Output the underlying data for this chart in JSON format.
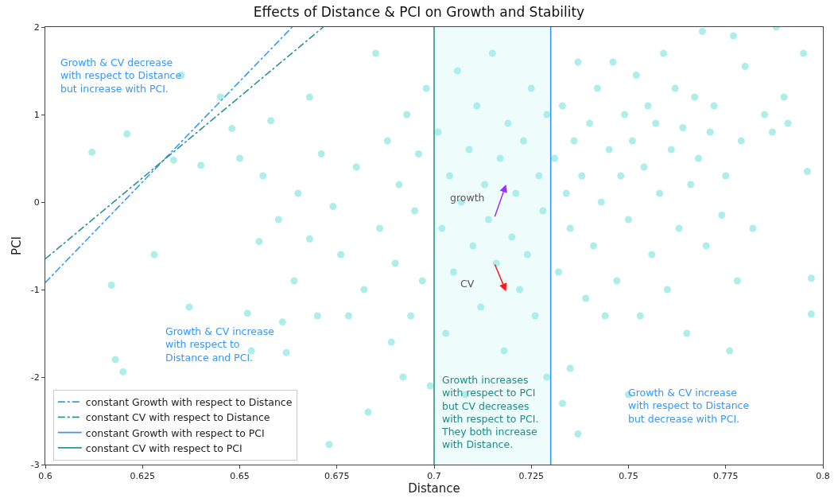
{
  "chart_data": {
    "type": "scatter",
    "title": "Effects of Distance & PCI on Growth and Stability",
    "xlabel": "Distance",
    "ylabel": "PCI",
    "xlim": [
      0.6,
      0.8
    ],
    "xticks": [
      0.6,
      0.625,
      0.65,
      0.675,
      0.7,
      0.725,
      0.75,
      0.775,
      0.8
    ],
    "ylim": [
      -3,
      2
    ],
    "yticks": [
      -3,
      -2,
      -1,
      0,
      1,
      2
    ],
    "grid": false,
    "legend": "bottom left",
    "annotations": [
      "Growth & CV decrease\nwith respect to Distance\nbut increase with PCI.",
      "Growth & CV increase\nwith respect to\nDistance and PCI.",
      "Growth increases\nwith respect to PCI\nbut CV decreases\nwith respect to PCI.\nThey both increase\nwith Distance.",
      "Growth & CV increase\nwith respect to Distance\nbut decrease with PCI.",
      "growth",
      "CV"
    ],
    "bands": [
      {
        "axis": "x",
        "from": 0.7,
        "to": 0.73,
        "color": "#effcfc"
      }
    ],
    "series": [
      {
        "marker": "circle",
        "color": "#aeeeea",
        "x": [
          0.612,
          0.617,
          0.618,
          0.62,
          0.621,
          0.628,
          0.633,
          0.635,
          0.637,
          0.64,
          0.645,
          0.648,
          0.65,
          0.652,
          0.653,
          0.655,
          0.656,
          0.658,
          0.66,
          0.661,
          0.662,
          0.664,
          0.665,
          0.668,
          0.668,
          0.67,
          0.671,
          0.673,
          0.674,
          0.676,
          0.678,
          0.68,
          0.682,
          0.683,
          0.685,
          0.686,
          0.688,
          0.689,
          0.69,
          0.691,
          0.692,
          0.693,
          0.694,
          0.695,
          0.696,
          0.697,
          0.698,
          0.699,
          0.701,
          0.702,
          0.703,
          0.704,
          0.705,
          0.706,
          0.707,
          0.708,
          0.709,
          0.71,
          0.711,
          0.712,
          0.713,
          0.714,
          0.715,
          0.716,
          0.717,
          0.718,
          0.719,
          0.72,
          0.721,
          0.722,
          0.723,
          0.724,
          0.725,
          0.726,
          0.727,
          0.728,
          0.729,
          0.729,
          0.731,
          0.732,
          0.733,
          0.733,
          0.734,
          0.735,
          0.735,
          0.736,
          0.737,
          0.737,
          0.738,
          0.739,
          0.74,
          0.741,
          0.742,
          0.743,
          0.744,
          0.745,
          0.746,
          0.747,
          0.748,
          0.749,
          0.75,
          0.75,
          0.751,
          0.752,
          0.753,
          0.754,
          0.755,
          0.756,
          0.757,
          0.758,
          0.759,
          0.76,
          0.761,
          0.762,
          0.763,
          0.764,
          0.765,
          0.766,
          0.767,
          0.768,
          0.769,
          0.77,
          0.771,
          0.772,
          0.774,
          0.775,
          0.776,
          0.777,
          0.778,
          0.779,
          0.78,
          0.782,
          0.785,
          0.787,
          0.788,
          0.79,
          0.791,
          0.795,
          0.796,
          0.797,
          0.797
        ],
        "values": [
          0.57,
          -0.95,
          -1.8,
          -1.94,
          0.78,
          -0.6,
          0.48,
          1.45,
          -1.2,
          0.42,
          1.2,
          0.84,
          0.5,
          -1.27,
          -1.7,
          -0.45,
          0.3,
          0.93,
          -0.2,
          -1.37,
          -1.72,
          -0.9,
          0.1,
          -0.42,
          1.2,
          -1.3,
          0.55,
          -2.77,
          -0.05,
          -0.6,
          -1.3,
          0.4,
          -1.0,
          -2.4,
          1.7,
          -0.3,
          0.7,
          -1.6,
          -0.7,
          0.2,
          -2.0,
          1.0,
          -1.3,
          -0.1,
          0.55,
          -0.9,
          1.3,
          -2.1,
          0.8,
          -0.3,
          -1.5,
          0.3,
          -0.8,
          1.5,
          0.0,
          -2.2,
          0.6,
          -0.5,
          1.1,
          -1.2,
          0.2,
          -0.2,
          1.7,
          -0.7,
          0.5,
          -1.7,
          0.9,
          -0.4,
          0.1,
          -1.0,
          0.7,
          -0.6,
          1.3,
          -1.3,
          0.3,
          -0.1,
          -2.0,
          1.0,
          0.5,
          -0.8,
          -2.3,
          1.1,
          0.1,
          -1.9,
          -0.3,
          0.7,
          -2.65,
          1.6,
          0.3,
          -1.1,
          0.9,
          -0.5,
          1.3,
          0.0,
          -1.3,
          0.6,
          1.6,
          -0.9,
          0.3,
          1.0,
          -2.2,
          -0.2,
          0.7,
          1.45,
          -1.3,
          0.4,
          1.1,
          -0.6,
          0.9,
          0.1,
          1.7,
          -1.0,
          0.6,
          1.3,
          -0.3,
          0.85,
          -1.5,
          0.2,
          1.2,
          0.5,
          1.95,
          -0.5,
          0.8,
          1.1,
          -0.15,
          0.3,
          -1.7,
          1.9,
          -0.9,
          0.7,
          1.55,
          -0.3,
          1.0,
          0.8,
          2.0,
          1.2,
          0.9,
          1.7,
          0.35,
          -0.87,
          -1.28
        ]
      },
      {
        "type": "line",
        "name": "constant Growth with respect to Distance",
        "color": "#3399ff",
        "marker": "none",
        "line_style": "dashed",
        "x": [
          0.6,
          0.6635
        ],
        "values": [
          -0.92,
          2
        ]
      },
      {
        "type": "line",
        "name": "constant CV with respect to Distance",
        "color": "#2a9490",
        "marker": "none",
        "line_style": "dashed",
        "x": [
          0.6,
          0.6715
        ],
        "values": [
          -0.65,
          2
        ]
      },
      {
        "type": "line",
        "name": "constant Growth with respect to PCI",
        "color": "#3399ff",
        "marker": "none",
        "line_style": "solid",
        "x": [
          0.73,
          0.73
        ],
        "values": [
          -3,
          2
        ]
      },
      {
        "type": "line",
        "name": "constant CV with respect to PCI",
        "color": "#2a9490",
        "marker": "none",
        "line_style": "solid",
        "x": [
          0.7,
          0.7
        ],
        "values": [
          -3,
          2
        ]
      }
    ]
  }
}
